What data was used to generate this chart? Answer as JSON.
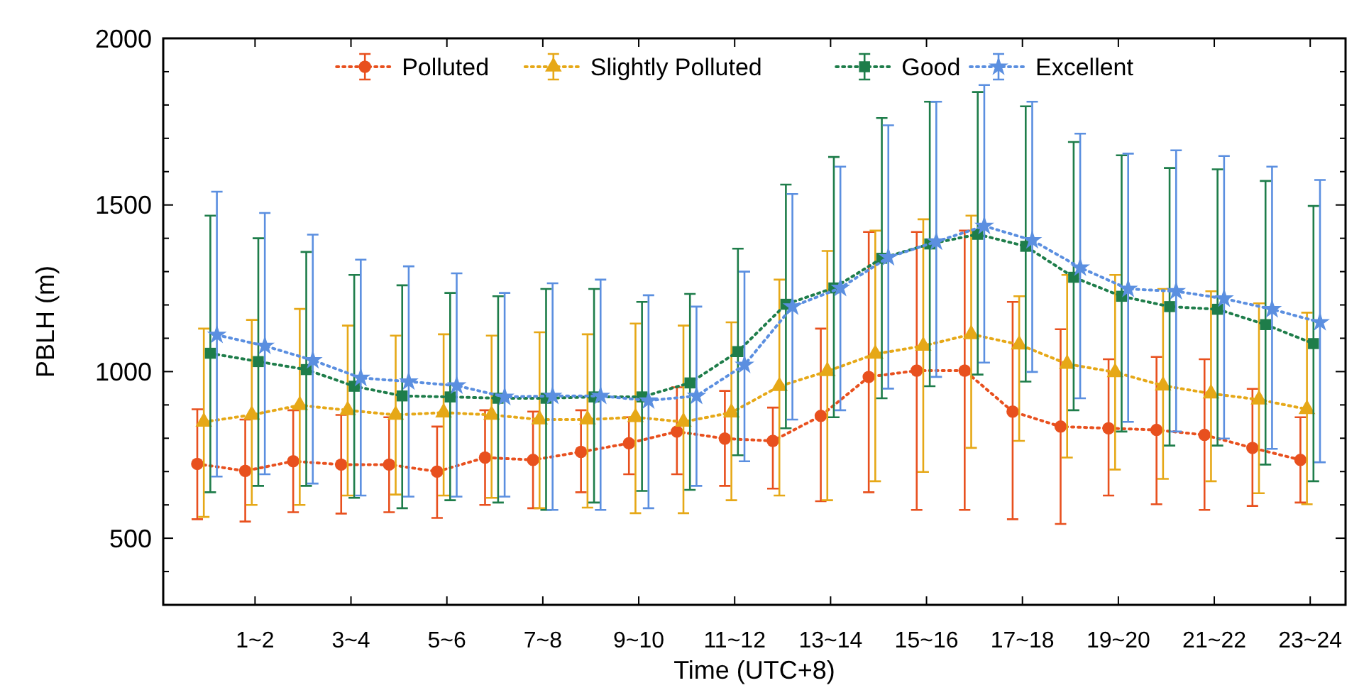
{
  "chart_data": {
    "type": "line",
    "xlabel": "Time (UTC+8)",
    "ylabel": "PBLH (m)",
    "categories": [
      null,
      "1~2",
      null,
      "3~4",
      null,
      "5~6",
      null,
      "7~8",
      null,
      "9~10",
      null,
      "11~12",
      null,
      "13~14",
      null,
      "15~16",
      null,
      "17~18",
      null,
      "19~20",
      null,
      "21~22",
      null,
      "23~24"
    ],
    "ylim": [
      300,
      2000
    ],
    "yticks": [
      {
        "value": 300,
        "label": null
      },
      {
        "value": 400,
        "label": null
      },
      500,
      {
        "value": 600,
        "label": null
      },
      {
        "value": 700,
        "label": null
      },
      {
        "value": 800,
        "label": null
      },
      {
        "value": 900,
        "label": null
      },
      1000,
      {
        "value": 1100,
        "label": null
      },
      {
        "value": 1200,
        "label": null
      },
      {
        "value": 1300,
        "label": null
      },
      {
        "value": 1400,
        "label": null
      },
      1500,
      {
        "value": 1600,
        "label": null
      },
      {
        "value": 1700,
        "label": null
      },
      {
        "value": 1800,
        "label": null
      },
      {
        "value": 1900,
        "label": null
      },
      2000
    ],
    "grid": false,
    "legend": "top",
    "line_style": "dotted",
    "series": [
      {
        "name": "Polluted",
        "color": "#e8501e",
        "marker": "circle",
        "values": [
          723,
          702,
          731,
          721,
          721,
          700,
          742,
          735,
          759,
          785,
          820,
          799,
          792,
          867,
          984,
          1003,
          1003,
          880,
          835,
          830,
          825,
          810,
          771,
          735
        ],
        "errors": [
          [
            557,
            887
          ],
          [
            550,
            856
          ],
          [
            578,
            884
          ],
          [
            574,
            870
          ],
          [
            578,
            863
          ],
          [
            561,
            835
          ],
          [
            600,
            884
          ],
          [
            590,
            880
          ],
          [
            638,
            884
          ],
          [
            692,
            863
          ],
          [
            692,
            953
          ],
          [
            657,
            942
          ],
          [
            649,
            892
          ],
          [
            611,
            1129
          ],
          [
            638,
            1419
          ],
          [
            585,
            1419
          ],
          [
            585,
            1423
          ],
          [
            557,
            1209
          ],
          [
            543,
            1127
          ],
          [
            628,
            1037
          ],
          [
            602,
            1044
          ],
          [
            585,
            1037
          ],
          [
            597,
            948
          ],
          [
            607,
            863
          ]
        ]
      },
      {
        "name": "Slightly Polluted",
        "color": "#e6a817",
        "marker": "triangle",
        "values": [
          849,
          870,
          899,
          884,
          870,
          877,
          870,
          856,
          856,
          863,
          849,
          877,
          956,
          1001,
          1053,
          1077,
          1112,
          1081,
          1023,
          998,
          958,
          934,
          916,
          887
        ],
        "errors": [
          [
            564,
            1129
          ],
          [
            600,
            1155
          ],
          [
            600,
            1188
          ],
          [
            628,
            1138
          ],
          [
            631,
            1108
          ],
          [
            628,
            1112
          ],
          [
            621,
            1108
          ],
          [
            590,
            1118
          ],
          [
            592,
            1112
          ],
          [
            575,
            1144
          ],
          [
            575,
            1138
          ],
          [
            614,
            1148
          ],
          [
            628,
            1276
          ],
          [
            614,
            1362
          ],
          [
            671,
            1423
          ],
          [
            699,
            1457
          ],
          [
            771,
            1468
          ],
          [
            792,
            1226
          ],
          [
            742,
            1290
          ],
          [
            706,
            1290
          ],
          [
            678,
            1248
          ],
          [
            671,
            1241
          ],
          [
            635,
            1205
          ],
          [
            602,
            1177
          ]
        ]
      },
      {
        "name": "Good",
        "color": "#1e7d4a",
        "marker": "square",
        "values": [
          1055,
          1030,
          1006,
          956,
          927,
          924,
          920,
          920,
          924,
          924,
          966,
          1060,
          1202,
          1251,
          1340,
          1383,
          1412,
          1376,
          1283,
          1226,
          1195,
          1187,
          1141,
          1084
        ],
        "errors": [
          [
            638,
            1468
          ],
          [
            657,
            1400
          ],
          [
            657,
            1359
          ],
          [
            621,
            1290
          ],
          [
            590,
            1259
          ],
          [
            614,
            1236
          ],
          [
            607,
            1226
          ],
          [
            585,
            1248
          ],
          [
            607,
            1248
          ],
          [
            642,
            1209
          ],
          [
            645,
            1233
          ],
          [
            749,
            1369
          ],
          [
            830,
            1561
          ],
          [
            863,
            1644
          ],
          [
            920,
            1761
          ],
          [
            956,
            1810
          ],
          [
            991,
            1839
          ],
          [
            970,
            1796
          ],
          [
            884,
            1689
          ],
          [
            820,
            1649
          ],
          [
            778,
            1611
          ],
          [
            778,
            1607
          ],
          [
            721,
            1572
          ],
          [
            671,
            1497
          ]
        ]
      },
      {
        "name": "Excellent",
        "color": "#5b8fe0",
        "marker": "star",
        "values": [
          1110,
          1077,
          1034,
          981,
          970,
          958,
          924,
          927,
          927,
          913,
          927,
          1020,
          1195,
          1251,
          1343,
          1390,
          1437,
          1394,
          1312,
          1248,
          1241,
          1219,
          1187,
          1148
        ],
        "errors": [
          [
            685,
            1540
          ],
          [
            692,
            1476
          ],
          [
            664,
            1411
          ],
          [
            628,
            1336
          ],
          [
            625,
            1316
          ],
          [
            625,
            1295
          ],
          [
            625,
            1236
          ],
          [
            585,
            1265
          ],
          [
            585,
            1276
          ],
          [
            590,
            1229
          ],
          [
            657,
            1195
          ],
          [
            731,
            1300
          ],
          [
            856,
            1533
          ],
          [
            884,
            1615
          ],
          [
            949,
            1739
          ],
          [
            984,
            1810
          ],
          [
            1027,
            1860
          ],
          [
            999,
            1810
          ],
          [
            920,
            1714
          ],
          [
            849,
            1654
          ],
          [
            820,
            1664
          ],
          [
            799,
            1647
          ],
          [
            768,
            1615
          ],
          [
            728,
            1575
          ]
        ]
      }
    ]
  }
}
